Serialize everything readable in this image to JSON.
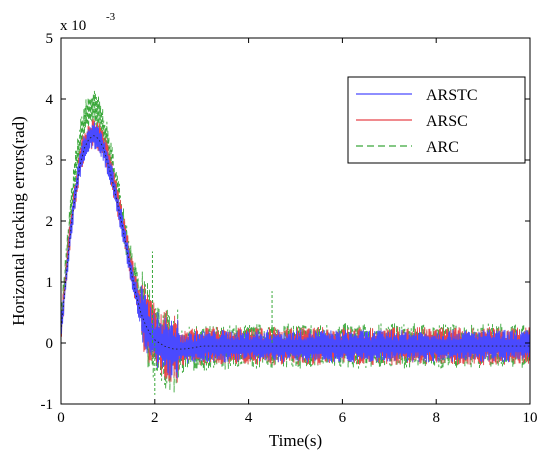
{
  "chart_data": {
    "type": "line",
    "xlabel": "Time(s)",
    "ylabel": "Horizontal tracking errors(rad)",
    "y_multiplier_base": "x 10",
    "y_multiplier_exponent": "-3",
    "xlim": [
      0,
      10
    ],
    "ylim": [
      -1,
      5
    ],
    "x_ticks": [
      "0",
      "2",
      "4",
      "6",
      "8",
      "10"
    ],
    "y_ticks": [
      "-1",
      "0",
      "1",
      "2",
      "3",
      "4",
      "5"
    ],
    "grid": false,
    "legend_position": "top-right",
    "series": [
      {
        "name": "ARSTC",
        "color": "#4a4aff",
        "style": "solid",
        "x": [
          0,
          0.1,
          0.2,
          0.3,
          0.4,
          0.5,
          0.6,
          0.7,
          0.8,
          0.9,
          1.0,
          1.1,
          1.2,
          1.3,
          1.4,
          1.5,
          1.6,
          1.7,
          1.8,
          1.9,
          2.0,
          2.2,
          2.4,
          2.6,
          2.8,
          3.0,
          3.5,
          4.0,
          4.5,
          5.0,
          5.5,
          6.0,
          6.5,
          7.0,
          7.5,
          8.0,
          8.5,
          9.0,
          9.5,
          10.0
        ],
        "y": [
          0.2,
          1.0,
          1.8,
          2.4,
          2.9,
          3.2,
          3.35,
          3.4,
          3.35,
          3.2,
          2.95,
          2.65,
          2.3,
          1.95,
          1.55,
          1.15,
          0.8,
          0.5,
          0.3,
          0.15,
          0.05,
          -0.05,
          -0.1,
          -0.1,
          -0.08,
          -0.05,
          -0.05,
          -0.05,
          -0.05,
          -0.05,
          -0.05,
          -0.05,
          -0.05,
          -0.05,
          -0.05,
          -0.05,
          -0.05,
          -0.05,
          -0.05,
          -0.05
        ]
      },
      {
        "name": "ARSC",
        "color": "#e8454a",
        "style": "solid",
        "x": [
          0,
          0.1,
          0.2,
          0.3,
          0.4,
          0.5,
          0.6,
          0.7,
          0.8,
          0.9,
          1.0,
          1.1,
          1.2,
          1.3,
          1.4,
          1.5,
          1.6,
          1.7,
          1.8,
          1.9,
          2.0,
          2.2,
          2.4,
          2.6,
          2.8,
          3.0,
          3.5,
          4.0,
          4.5,
          5.0,
          5.5,
          6.0,
          6.5,
          7.0,
          7.5,
          8.0,
          8.5,
          9.0,
          9.5,
          10.0
        ],
        "y": [
          0.25,
          1.05,
          1.85,
          2.45,
          2.95,
          3.25,
          3.4,
          3.45,
          3.4,
          3.25,
          3.0,
          2.7,
          2.35,
          2.0,
          1.6,
          1.2,
          0.85,
          0.55,
          0.35,
          0.2,
          0.08,
          -0.03,
          -0.08,
          -0.08,
          -0.06,
          -0.05,
          -0.05,
          -0.05,
          -0.05,
          -0.05,
          -0.05,
          -0.05,
          -0.05,
          -0.05,
          -0.05,
          -0.05,
          -0.05,
          -0.05,
          -0.05,
          -0.05
        ]
      },
      {
        "name": "ARC",
        "color": "#3aa83a",
        "style": "dashed",
        "x": [
          0,
          0.1,
          0.2,
          0.3,
          0.4,
          0.5,
          0.6,
          0.7,
          0.8,
          0.9,
          1.0,
          1.1,
          1.2,
          1.3,
          1.4,
          1.5,
          1.6,
          1.7,
          1.8,
          1.9,
          2.0,
          2.2,
          2.4,
          2.6,
          2.8,
          3.0,
          3.5,
          4.0,
          4.5,
          5.0,
          5.5,
          6.0,
          6.5,
          7.0,
          7.5,
          8.0,
          8.5,
          9.0,
          9.5,
          10.0
        ],
        "y": [
          0.3,
          1.2,
          2.1,
          2.8,
          3.3,
          3.65,
          3.8,
          3.85,
          3.75,
          3.55,
          3.25,
          2.9,
          2.5,
          2.1,
          1.7,
          1.3,
          0.95,
          0.6,
          0.4,
          0.2,
          0.05,
          -0.1,
          -0.15,
          -0.12,
          -0.1,
          -0.08,
          -0.08,
          -0.06,
          -0.05,
          -0.05,
          -0.05,
          -0.05,
          -0.05,
          -0.05,
          -0.05,
          -0.05,
          -0.05,
          -0.05,
          -0.05,
          -0.05
        ]
      }
    ],
    "noise_amplitude": [
      {
        "x_from": 0.0,
        "x_to": 1.7,
        "amp": 0.25
      },
      {
        "x_from": 1.7,
        "x_to": 2.5,
        "amp": 0.55
      },
      {
        "x_from": 2.5,
        "x_to": 10.0,
        "amp": 0.3
      }
    ],
    "annotation_spikes": [
      {
        "x": 4.5,
        "y": 0.85
      },
      {
        "x": 1.95,
        "y": 1.5
      },
      {
        "x": 2.0,
        "y": -0.85
      }
    ]
  }
}
